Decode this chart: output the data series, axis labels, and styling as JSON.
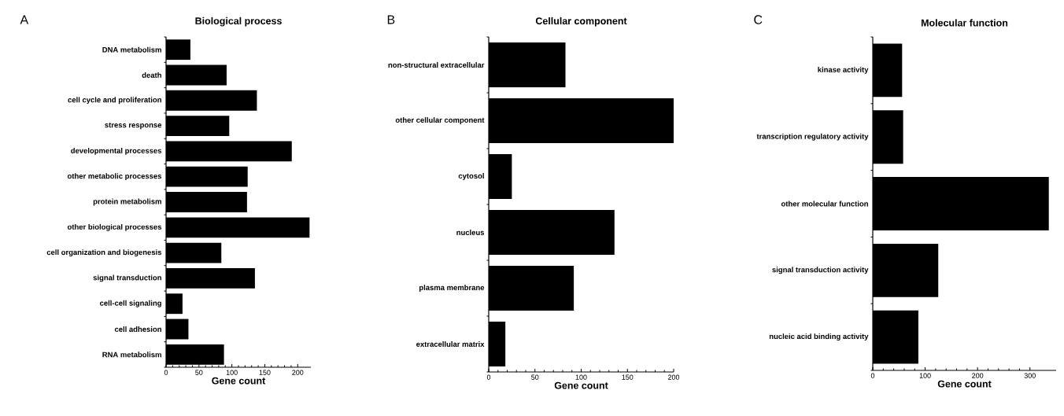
{
  "chart_data": [
    {
      "type": "bar",
      "orientation": "horizontal",
      "title": "Biological process",
      "xlabel": "Gene count",
      "annotations": [
        "A"
      ],
      "color": "#000000",
      "categories": [
        "DNA metabolism",
        "death",
        "cell cycle and proliferation",
        "stress response",
        "developmental processes",
        "other metabolic processes",
        "protein metabolism",
        "other biological processes",
        "cell organization and biogenesis",
        "signal transduction",
        "cell-cell signaling",
        "cell adhesion",
        "RNA metabolism"
      ],
      "values": [
        37,
        92,
        138,
        96,
        191,
        124,
        123,
        218,
        84,
        135,
        25,
        34,
        88
      ],
      "xlim": [
        0,
        220
      ],
      "xticks": [
        0,
        50,
        100,
        150,
        200
      ]
    },
    {
      "type": "bar",
      "orientation": "horizontal",
      "title": "Cellular component",
      "xlabel": "Gene count",
      "annotations": [
        "B"
      ],
      "color": "#000000",
      "categories": [
        "non-structural extracellular",
        "other cellular component",
        "cytosol",
        "nucleus",
        "plasma membrane",
        "extracellular matrix"
      ],
      "values": [
        83,
        200,
        25,
        136,
        92,
        18
      ],
      "xlim": [
        0,
        200
      ],
      "xticks": [
        0,
        50,
        100,
        150,
        200
      ]
    },
    {
      "type": "bar",
      "orientation": "horizontal",
      "title": "Molecular function",
      "xlabel": "Gene count",
      "annotations": [
        "C"
      ],
      "color": "#000000",
      "categories": [
        "kinase activity",
        "transcription regulatory activity",
        "other molecular function",
        "signal transduction activity",
        "nucleic acid binding activity"
      ],
      "values": [
        56,
        58,
        336,
        125,
        87
      ],
      "xlim": [
        0,
        350
      ],
      "xticks": [
        0,
        100,
        200,
        300
      ]
    }
  ]
}
